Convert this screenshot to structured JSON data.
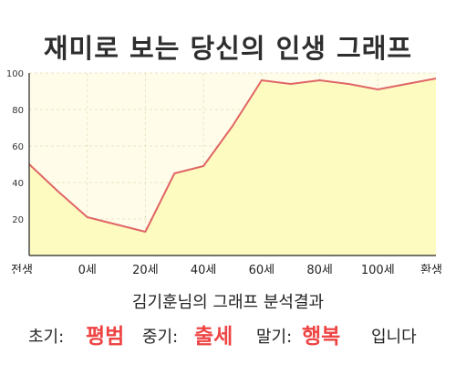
{
  "chart_data": {
    "type": "area",
    "title": "재미로 보는 당신의 인생 그래프",
    "categories": [
      "전생",
      "0세",
      "20세",
      "40세",
      "60세",
      "80세",
      "100세",
      "환생"
    ],
    "x": [
      "전생",
      "",
      "0세",
      "",
      "20세",
      "",
      "40세",
      "",
      "60세",
      "",
      "80세",
      "",
      "100세",
      "",
      "환생"
    ],
    "values": [
      50,
      35,
      21,
      17,
      13,
      45,
      49,
      71,
      96,
      94,
      96,
      94,
      91,
      94,
      97
    ],
    "yticks": [
      20,
      40,
      60,
      80,
      100
    ],
    "ylim": [
      0,
      100
    ],
    "grid": true,
    "colors": {
      "line": "#e06666",
      "fill": "#fdfbc0",
      "plot_bg": "#fffdea",
      "grid": "#e8e4c4",
      "axis": "#222222"
    }
  },
  "result": {
    "name_line": "김기훈님의 그래프 분석결과",
    "early_label": "초기:",
    "early_value": "평범",
    "middle_label": "중기:",
    "middle_value": "출세",
    "late_label": "말기:",
    "late_value": "행복",
    "suffix": "입니다"
  }
}
